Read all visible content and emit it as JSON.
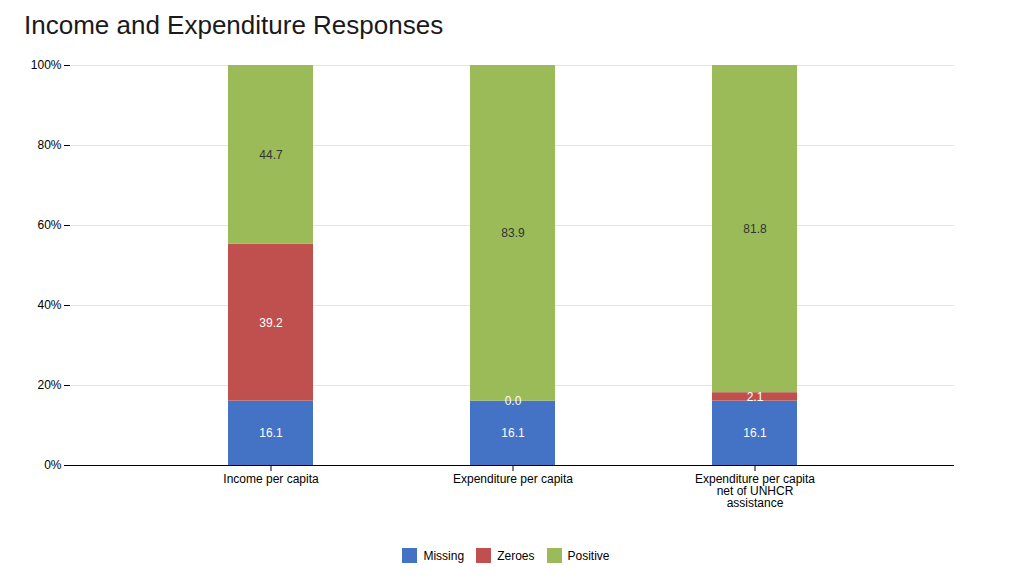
{
  "chart_data": {
    "type": "bar",
    "title": "Income and Expenditure Responses",
    "categories": [
      "Income per capita",
      "Expenditure per capita",
      "Expenditure per capita\nnet of UNHCR\nassistance"
    ],
    "series": [
      {
        "name": "Missing",
        "color": "#4472C4",
        "values": [
          16.1,
          16.1,
          16.1
        ]
      },
      {
        "name": "Zeroes",
        "color": "#C0504D",
        "values": [
          39.2,
          0.0,
          2.1
        ],
        "value_labels": [
          "39.2",
          "0.0",
          "2.1"
        ]
      },
      {
        "name": "Positive",
        "color": "#9BBB59",
        "values": [
          44.7,
          83.9,
          81.8
        ]
      }
    ],
    "stacked": true,
    "data_labels": true,
    "ylim": [
      0,
      100
    ],
    "yticks": [
      {
        "value": 0,
        "label": "0%"
      },
      {
        "value": 20,
        "label": "20%"
      },
      {
        "value": 40,
        "label": "40%"
      },
      {
        "value": 60,
        "label": "60%"
      },
      {
        "value": 80,
        "label": "80%"
      },
      {
        "value": 100,
        "label": "100%"
      }
    ],
    "grid": true,
    "legend": "bottom"
  }
}
